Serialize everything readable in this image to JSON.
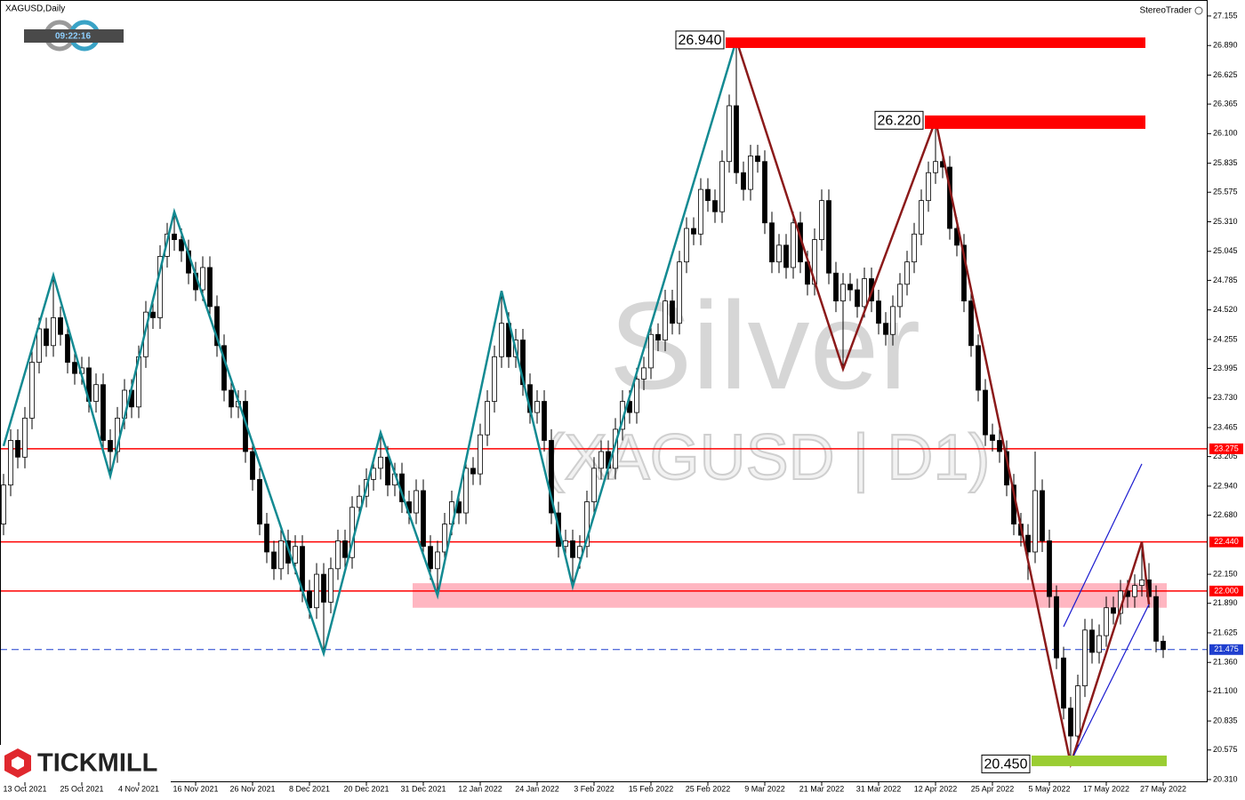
{
  "chart_data": {
    "type": "candlestick",
    "title": "XAGUSD,Daily",
    "widget": "StereoTrader",
    "clock": "09:22:16",
    "brand": "TICKMILL",
    "watermark": "Silver",
    "watermark_subtitle": "(XAGUSD | D1)",
    "up_color": "#ffffff",
    "down_color": "#000000",
    "ylim": [
      20.286,
      27.298
    ],
    "yticks": [
      27.155,
      {
        "value": 26.89,
        "label": "26.890"
      },
      26.625,
      26.365,
      {
        "value": 26.1,
        "label": "26.100"
      },
      25.835,
      25.575,
      {
        "value": 25.31,
        "label": "25.310"
      },
      25.045,
      24.785,
      {
        "value": 24.52,
        "label": "24.520"
      },
      24.255,
      23.995,
      {
        "value": 23.73,
        "label": "23.730"
      },
      23.465,
      23.205,
      {
        "value": 22.94,
        "label": "22.940"
      },
      {
        "value": 22.68,
        "label": "22.680"
      },
      {
        "value": 22.15,
        "label": "22.150"
      },
      {
        "value": 21.89,
        "label": "21.890"
      },
      21.625,
      {
        "value": 21.36,
        "label": "21.360"
      },
      {
        "value": 21.1,
        "label": "21.100"
      },
      20.835,
      20.575,
      {
        "value": 20.31,
        "label": "20.310"
      }
    ],
    "categories": [
      null,
      null,
      null,
      "13 Oct 2021",
      null,
      null,
      null,
      null,
      null,
      null,
      null,
      "25 Oct 2021",
      null,
      null,
      null,
      null,
      null,
      null,
      null,
      "4 Nov 2021",
      null,
      null,
      null,
      null,
      null,
      null,
      null,
      "16 Nov 2021",
      null,
      null,
      null,
      null,
      null,
      null,
      null,
      "26 Nov 2021",
      null,
      null,
      null,
      null,
      null,
      null,
      null,
      "8 Dec 2021",
      null,
      null,
      null,
      null,
      null,
      null,
      null,
      "20 Dec 2021",
      null,
      null,
      null,
      null,
      null,
      null,
      null,
      "31 Dec 2021",
      null,
      null,
      null,
      null,
      null,
      null,
      null,
      "12 Jan 2022",
      null,
      null,
      null,
      null,
      null,
      null,
      null,
      "24 Jan 2022",
      null,
      null,
      null,
      null,
      null,
      null,
      null,
      "3 Feb 2022",
      null,
      null,
      null,
      null,
      null,
      null,
      null,
      "15 Feb 2022",
      null,
      null,
      null,
      null,
      null,
      null,
      null,
      "25 Feb 2022",
      null,
      null,
      null,
      null,
      null,
      null,
      null,
      "9 Mar 2022",
      null,
      null,
      null,
      null,
      null,
      null,
      null,
      "21 Mar 2022",
      null,
      null,
      null,
      null,
      null,
      null,
      null,
      "31 Mar 2022",
      null,
      null,
      null,
      null,
      null,
      null,
      null,
      "12 Apr 2022",
      null,
      null,
      null,
      null,
      null,
      null,
      null,
      "25 Apr 2022",
      null,
      null,
      null,
      null,
      null,
      null,
      null,
      "5 May 2022",
      null,
      null,
      null,
      null,
      null,
      null,
      null,
      "17 May 2022",
      null,
      null,
      null,
      null,
      null,
      null,
      null,
      "27 May 2022"
    ],
    "ohlc": [
      [
        22.6,
        23.05,
        22.5,
        22.95
      ],
      [
        22.95,
        23.45,
        22.85,
        23.35
      ],
      [
        23.35,
        23.45,
        23.1,
        23.2
      ],
      [
        23.2,
        23.65,
        23.1,
        23.55
      ],
      [
        23.55,
        24.15,
        23.45,
        24.05
      ],
      [
        24.05,
        24.45,
        23.95,
        24.35
      ],
      [
        24.35,
        24.45,
        24.1,
        24.2
      ],
      [
        24.2,
        24.83,
        24.1,
        24.45
      ],
      [
        24.45,
        24.55,
        24.2,
        24.3
      ],
      [
        24.3,
        24.4,
        23.95,
        24.05
      ],
      [
        24.05,
        24.15,
        23.85,
        23.95
      ],
      [
        23.95,
        24.1,
        23.85,
        24.0
      ],
      [
        24.0,
        24.1,
        23.6,
        23.7
      ],
      [
        23.7,
        23.95,
        23.6,
        23.85
      ],
      [
        23.85,
        23.95,
        23.25,
        23.35
      ],
      [
        23.35,
        23.45,
        23.03,
        23.25
      ],
      [
        23.25,
        23.65,
        23.15,
        23.55
      ],
      [
        23.55,
        23.9,
        23.45,
        23.8
      ],
      [
        23.8,
        23.9,
        23.55,
        23.65
      ],
      [
        23.65,
        24.2,
        23.55,
        24.1
      ],
      [
        24.1,
        24.6,
        24.0,
        24.5
      ],
      [
        24.5,
        24.6,
        24.35,
        24.45
      ],
      [
        24.45,
        25.1,
        24.35,
        25.0
      ],
      [
        25.0,
        25.3,
        24.9,
        25.2
      ],
      [
        25.2,
        25.4,
        25.05,
        25.15
      ],
      [
        25.15,
        25.25,
        24.95,
        25.05
      ],
      [
        25.05,
        25.15,
        24.75,
        24.85
      ],
      [
        24.85,
        24.95,
        24.6,
        24.7
      ],
      [
        24.7,
        25.0,
        24.6,
        24.9
      ],
      [
        24.9,
        25.0,
        24.45,
        24.55
      ],
      [
        24.55,
        24.65,
        24.1,
        24.2
      ],
      [
        24.2,
        24.3,
        23.7,
        23.8
      ],
      [
        23.8,
        23.9,
        23.55,
        23.65
      ],
      [
        23.65,
        23.8,
        23.55,
        23.7
      ],
      [
        23.7,
        23.8,
        23.15,
        23.25
      ],
      [
        23.25,
        23.35,
        22.9,
        23.0
      ],
      [
        23.0,
        23.1,
        22.5,
        22.6
      ],
      [
        22.6,
        22.7,
        22.25,
        22.35
      ],
      [
        22.35,
        22.45,
        22.1,
        22.2
      ],
      [
        22.2,
        22.55,
        22.1,
        22.45
      ],
      [
        22.45,
        22.55,
        22.15,
        22.25
      ],
      [
        22.25,
        22.5,
        22.15,
        22.4
      ],
      [
        22.4,
        22.5,
        21.9,
        22.0
      ],
      [
        22.0,
        22.1,
        21.75,
        21.85
      ],
      [
        21.85,
        22.25,
        21.75,
        22.15
      ],
      [
        22.15,
        22.25,
        21.44,
        21.9
      ],
      [
        21.9,
        22.3,
        21.8,
        22.2
      ],
      [
        22.2,
        22.55,
        22.1,
        22.45
      ],
      [
        22.45,
        22.55,
        22.2,
        22.3
      ],
      [
        22.3,
        22.85,
        22.2,
        22.75
      ],
      [
        22.75,
        22.95,
        22.65,
        22.85
      ],
      [
        22.85,
        23.1,
        22.75,
        23.0
      ],
      [
        23.0,
        23.2,
        22.9,
        23.1
      ],
      [
        23.1,
        23.42,
        23.0,
        23.2
      ],
      [
        23.2,
        23.3,
        22.85,
        22.95
      ],
      [
        22.95,
        23.15,
        22.85,
        23.05
      ],
      [
        23.05,
        23.15,
        22.7,
        22.8
      ],
      [
        22.8,
        22.9,
        22.6,
        22.7
      ],
      [
        22.7,
        23.0,
        22.6,
        22.9
      ],
      [
        22.9,
        23.0,
        22.3,
        22.4
      ],
      [
        22.4,
        22.5,
        22.1,
        22.2
      ],
      [
        22.2,
        22.45,
        21.96,
        22.35
      ],
      [
        22.35,
        22.7,
        22.25,
        22.6
      ],
      [
        22.6,
        22.9,
        22.5,
        22.8
      ],
      [
        22.8,
        22.9,
        22.6,
        22.7
      ],
      [
        22.7,
        23.2,
        22.6,
        23.1
      ],
      [
        23.1,
        23.2,
        22.95,
        23.05
      ],
      [
        23.05,
        23.5,
        22.95,
        23.4
      ],
      [
        23.4,
        23.8,
        23.3,
        23.7
      ],
      [
        23.7,
        24.2,
        23.6,
        24.1
      ],
      [
        24.1,
        24.69,
        24.0,
        24.4
      ],
      [
        24.4,
        24.5,
        24.0,
        24.1
      ],
      [
        24.1,
        24.35,
        24.0,
        24.25
      ],
      [
        24.25,
        24.35,
        23.75,
        23.85
      ],
      [
        23.85,
        23.95,
        23.5,
        23.6
      ],
      [
        23.6,
        23.8,
        23.5,
        23.7
      ],
      [
        23.7,
        23.8,
        23.25,
        23.35
      ],
      [
        23.35,
        23.45,
        22.6,
        22.7
      ],
      [
        22.7,
        22.8,
        22.3,
        22.4
      ],
      [
        22.4,
        22.55,
        22.3,
        22.45
      ],
      [
        22.45,
        22.55,
        22.04,
        22.3
      ],
      [
        22.3,
        22.5,
        22.2,
        22.4
      ],
      [
        22.4,
        22.9,
        22.3,
        22.8
      ],
      [
        22.8,
        23.2,
        22.7,
        23.1
      ],
      [
        23.1,
        23.35,
        23.0,
        23.25
      ],
      [
        23.25,
        23.35,
        23.0,
        23.1
      ],
      [
        23.1,
        23.55,
        23.0,
        23.45
      ],
      [
        23.45,
        23.8,
        23.35,
        23.7
      ],
      [
        23.7,
        23.8,
        23.5,
        23.6
      ],
      [
        23.6,
        24.0,
        23.5,
        23.9
      ],
      [
        23.9,
        24.1,
        23.8,
        24.0
      ],
      [
        24.0,
        24.4,
        23.9,
        24.3
      ],
      [
        24.3,
        24.4,
        24.15,
        24.25
      ],
      [
        24.25,
        24.7,
        24.15,
        24.6
      ],
      [
        24.6,
        24.7,
        24.3,
        24.4
      ],
      [
        24.4,
        25.05,
        24.3,
        24.95
      ],
      [
        24.95,
        25.35,
        24.85,
        25.25
      ],
      [
        25.25,
        25.35,
        25.1,
        25.2
      ],
      [
        25.2,
        25.7,
        25.1,
        25.6
      ],
      [
        25.6,
        25.7,
        25.4,
        25.5
      ],
      [
        25.5,
        25.6,
        25.3,
        25.4
      ],
      [
        25.4,
        25.95,
        25.3,
        25.85
      ],
      [
        25.85,
        26.45,
        25.75,
        26.35
      ],
      [
        26.35,
        26.94,
        25.65,
        25.75
      ],
      [
        25.75,
        25.85,
        25.5,
        25.6
      ],
      [
        25.6,
        26.0,
        25.5,
        25.9
      ],
      [
        25.9,
        26.0,
        25.75,
        25.85
      ],
      [
        25.85,
        25.95,
        25.2,
        25.3
      ],
      [
        25.3,
        25.4,
        24.85,
        24.95
      ],
      [
        24.95,
        25.2,
        24.85,
        25.1
      ],
      [
        25.1,
        25.2,
        24.8,
        24.9
      ],
      [
        24.9,
        25.4,
        24.8,
        25.3
      ],
      [
        25.3,
        25.4,
        24.85,
        24.95
      ],
      [
        24.95,
        25.05,
        24.65,
        24.75
      ],
      [
        24.75,
        25.25,
        24.65,
        25.15
      ],
      [
        25.15,
        25.6,
        25.05,
        25.5
      ],
      [
        25.5,
        25.6,
        24.75,
        24.85
      ],
      [
        24.85,
        24.95,
        24.5,
        24.6
      ],
      [
        24.6,
        24.85,
        23.99,
        24.75
      ],
      [
        24.75,
        24.85,
        24.6,
        24.7
      ],
      [
        24.7,
        24.8,
        24.45,
        24.55
      ],
      [
        24.55,
        24.9,
        24.45,
        24.8
      ],
      [
        24.8,
        24.9,
        24.5,
        24.6
      ],
      [
        24.6,
        24.7,
        24.3,
        24.4
      ],
      [
        24.4,
        24.5,
        24.2,
        24.3
      ],
      [
        24.3,
        24.65,
        24.2,
        24.55
      ],
      [
        24.55,
        24.85,
        24.45,
        24.75
      ],
      [
        24.75,
        25.05,
        24.65,
        24.95
      ],
      [
        24.95,
        25.3,
        24.85,
        25.2
      ],
      [
        25.2,
        25.6,
        25.1,
        25.5
      ],
      [
        25.5,
        25.85,
        25.4,
        25.75
      ],
      [
        25.75,
        26.22,
        25.65,
        25.85
      ],
      [
        25.85,
        25.95,
        25.7,
        25.8
      ],
      [
        25.8,
        25.9,
        25.15,
        25.25
      ],
      [
        25.25,
        25.35,
        25.0,
        25.1
      ],
      [
        25.1,
        25.2,
        24.5,
        24.6
      ],
      [
        24.6,
        24.7,
        24.1,
        24.2
      ],
      [
        24.2,
        24.3,
        23.7,
        23.8
      ],
      [
        23.8,
        23.9,
        23.3,
        23.4
      ],
      [
        23.4,
        23.5,
        23.25,
        23.35
      ],
      [
        23.35,
        23.45,
        23.15,
        23.25
      ],
      [
        23.25,
        23.35,
        22.85,
        22.95
      ],
      [
        22.95,
        23.05,
        22.5,
        22.6
      ],
      [
        22.6,
        22.7,
        22.4,
        22.5
      ],
      [
        22.5,
        22.6,
        22.1,
        22.35
      ],
      [
        22.35,
        23.25,
        22.25,
        22.9
      ],
      [
        22.9,
        23.0,
        22.35,
        22.45
      ],
      [
        22.45,
        22.55,
        21.85,
        21.95
      ],
      [
        21.95,
        22.05,
        21.3,
        21.4
      ],
      [
        21.4,
        21.5,
        20.85,
        20.95
      ],
      [
        20.95,
        21.05,
        20.45,
        20.7
      ],
      [
        20.7,
        21.25,
        20.6,
        21.15
      ],
      [
        21.15,
        21.75,
        21.05,
        21.65
      ],
      [
        21.65,
        21.75,
        21.35,
        21.45
      ],
      [
        21.45,
        21.7,
        21.35,
        21.6
      ],
      [
        21.6,
        21.95,
        21.5,
        21.85
      ],
      [
        21.85,
        21.95,
        21.7,
        21.8
      ],
      [
        21.8,
        22.1,
        21.7,
        22.0
      ],
      [
        22.0,
        22.1,
        21.85,
        21.95
      ],
      [
        21.95,
        22.15,
        21.85,
        22.05
      ],
      [
        22.05,
        22.44,
        21.95,
        22.1
      ],
      [
        22.1,
        22.25,
        21.85,
        21.95
      ],
      [
        21.95,
        22.05,
        21.45,
        21.55
      ],
      [
        21.55,
        21.6,
        21.4,
        21.475
      ]
    ],
    "zones": [
      {
        "color": "#ffb6c1",
        "from": 58,
        "to": 163,
        "range": [
          21.85,
          22.07
        ]
      },
      {
        "color": "#ff0000",
        "from": 102,
        "to": 160,
        "range": [
          26.868,
          26.962
        ],
        "value": 26.94,
        "label": "26.940"
      },
      {
        "color": "#ff0000",
        "from": 130,
        "to": 160,
        "range": [
          26.143,
          26.263
        ],
        "value": 26.22,
        "label": "26.220"
      },
      {
        "color": "#9acd32",
        "from": 145,
        "to": 163,
        "range": [
          20.43,
          20.525
        ],
        "value": 20.45,
        "label": "20.450"
      }
    ],
    "levels": [
      {
        "value": 23.275,
        "label": "23.275",
        "color": "#ff0000"
      },
      {
        "value": 22.44,
        "label": "22.440",
        "color": "#ff0000"
      },
      {
        "value": 22.0,
        "label": "22.000",
        "color": "#ff0000"
      },
      {
        "value": 21.475,
        "label": "21.475",
        "color": "#1f3fcf",
        "dashed": true
      }
    ],
    "lines": [
      {
        "color": "#138a92",
        "x": [
          0,
          7,
          15,
          24,
          45,
          53,
          61,
          70,
          80,
          103
        ],
        "values": [
          23.3,
          24.83,
          23.03,
          25.4,
          21.44,
          23.42,
          21.96,
          24.69,
          22.04,
          26.94
        ]
      },
      {
        "color": "#8b1a1a",
        "x": [
          103,
          118,
          131,
          150,
          160,
          161
        ],
        "values": [
          26.94,
          23.99,
          26.22,
          20.45,
          22.44,
          21.88
        ]
      },
      {
        "color": "#1a1acf",
        "x": [
          149,
          160
        ],
        "values": [
          21.68,
          23.14
        ]
      },
      {
        "color": "#1a1acf",
        "x": [
          150,
          161
        ],
        "values": [
          20.47,
          21.88
        ]
      }
    ]
  }
}
